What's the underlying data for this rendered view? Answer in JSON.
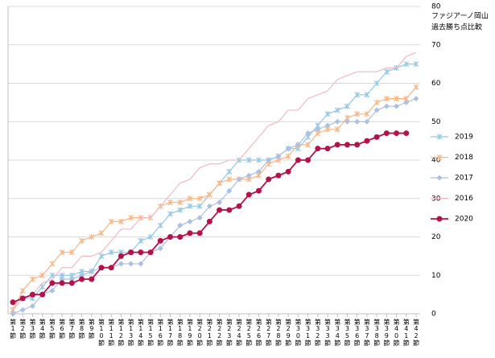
{
  "chart_data": {
    "type": "line",
    "title": "ファジアーノ岡山",
    "subtitle": "過去勝ち点比較",
    "categories": [
      "第1節",
      "第2節",
      "第3節",
      "第4節",
      "第5節",
      "第6節",
      "第7節",
      "第8節",
      "第9節",
      "第10節",
      "第11節",
      "第12節",
      "第13節",
      "第14節",
      "第15節",
      "第16節",
      "第17節",
      "第18節",
      "第19節",
      "第20節",
      "第21節",
      "第22節",
      "第23節",
      "第24節",
      "第25節",
      "第26節",
      "第27節",
      "第28節",
      "第29節",
      "第30節",
      "第31節",
      "第32節",
      "第33節",
      "第34節",
      "第35節",
      "第36節",
      "第37節",
      "第38節",
      "第39節",
      "第40節",
      "第41節",
      "第42節"
    ],
    "ylim": [
      0,
      80
    ],
    "yticks": [
      0,
      10,
      20,
      30,
      40,
      50,
      60,
      70,
      80
    ],
    "grid": true,
    "series": [
      {
        "name": "2019",
        "color": "#92c8e2",
        "marker": "x",
        "values": [
          1,
          4,
          4,
          7,
          10,
          10,
          10,
          11,
          11,
          15,
          16,
          16,
          16,
          19,
          20,
          23,
          26,
          27,
          28,
          28,
          31,
          34,
          37,
          40,
          40,
          40,
          40,
          41,
          43,
          43,
          46,
          49,
          52,
          53,
          54,
          57,
          57,
          60,
          63,
          64,
          65,
          65
        ]
      },
      {
        "name": "2018",
        "color": "#f7b684",
        "marker": "x",
        "values": [
          1,
          6,
          9,
          10,
          13,
          16,
          16,
          19,
          20,
          21,
          24,
          24,
          25,
          25,
          25,
          28,
          29,
          29,
          30,
          30,
          31,
          34,
          35,
          35,
          35,
          36,
          39,
          40,
          41,
          44,
          44,
          47,
          48,
          48,
          51,
          52,
          52,
          55,
          56,
          56,
          56,
          59
        ]
      },
      {
        "name": "2017",
        "color": "#adc0e2",
        "marker": "diamond",
        "values": [
          0,
          1,
          2,
          5,
          6,
          9,
          9,
          10,
          11,
          12,
          12,
          13,
          13,
          13,
          16,
          17,
          20,
          23,
          24,
          25,
          28,
          29,
          32,
          35,
          36,
          37,
          40,
          41,
          43,
          44,
          47,
          48,
          49,
          50,
          50,
          50,
          50,
          53,
          54,
          54,
          55,
          56
        ]
      },
      {
        "name": "2016",
        "color": "#f0b9c2",
        "marker": "none",
        "values": [
          1,
          4,
          5,
          8,
          9,
          12,
          12,
          15,
          15,
          16,
          19,
          22,
          22,
          25,
          25,
          28,
          31,
          34,
          35,
          38,
          39,
          39,
          40,
          40,
          43,
          46,
          49,
          50,
          53,
          53,
          56,
          57,
          58,
          61,
          62,
          63,
          63,
          63,
          64,
          64,
          67,
          68
        ]
      },
      {
        "name": "2020",
        "color": "#b3124a",
        "marker": "circle",
        "values": [
          3,
          4,
          5,
          5,
          8,
          8,
          8,
          9,
          9,
          12,
          12,
          15,
          16,
          16,
          16,
          19,
          20,
          20,
          21,
          21,
          24,
          27,
          27,
          28,
          31,
          32,
          35,
          36,
          37,
          40,
          40,
          43,
          43,
          44,
          44,
          44,
          45,
          46,
          47,
          47,
          47,
          null
        ]
      }
    ]
  }
}
